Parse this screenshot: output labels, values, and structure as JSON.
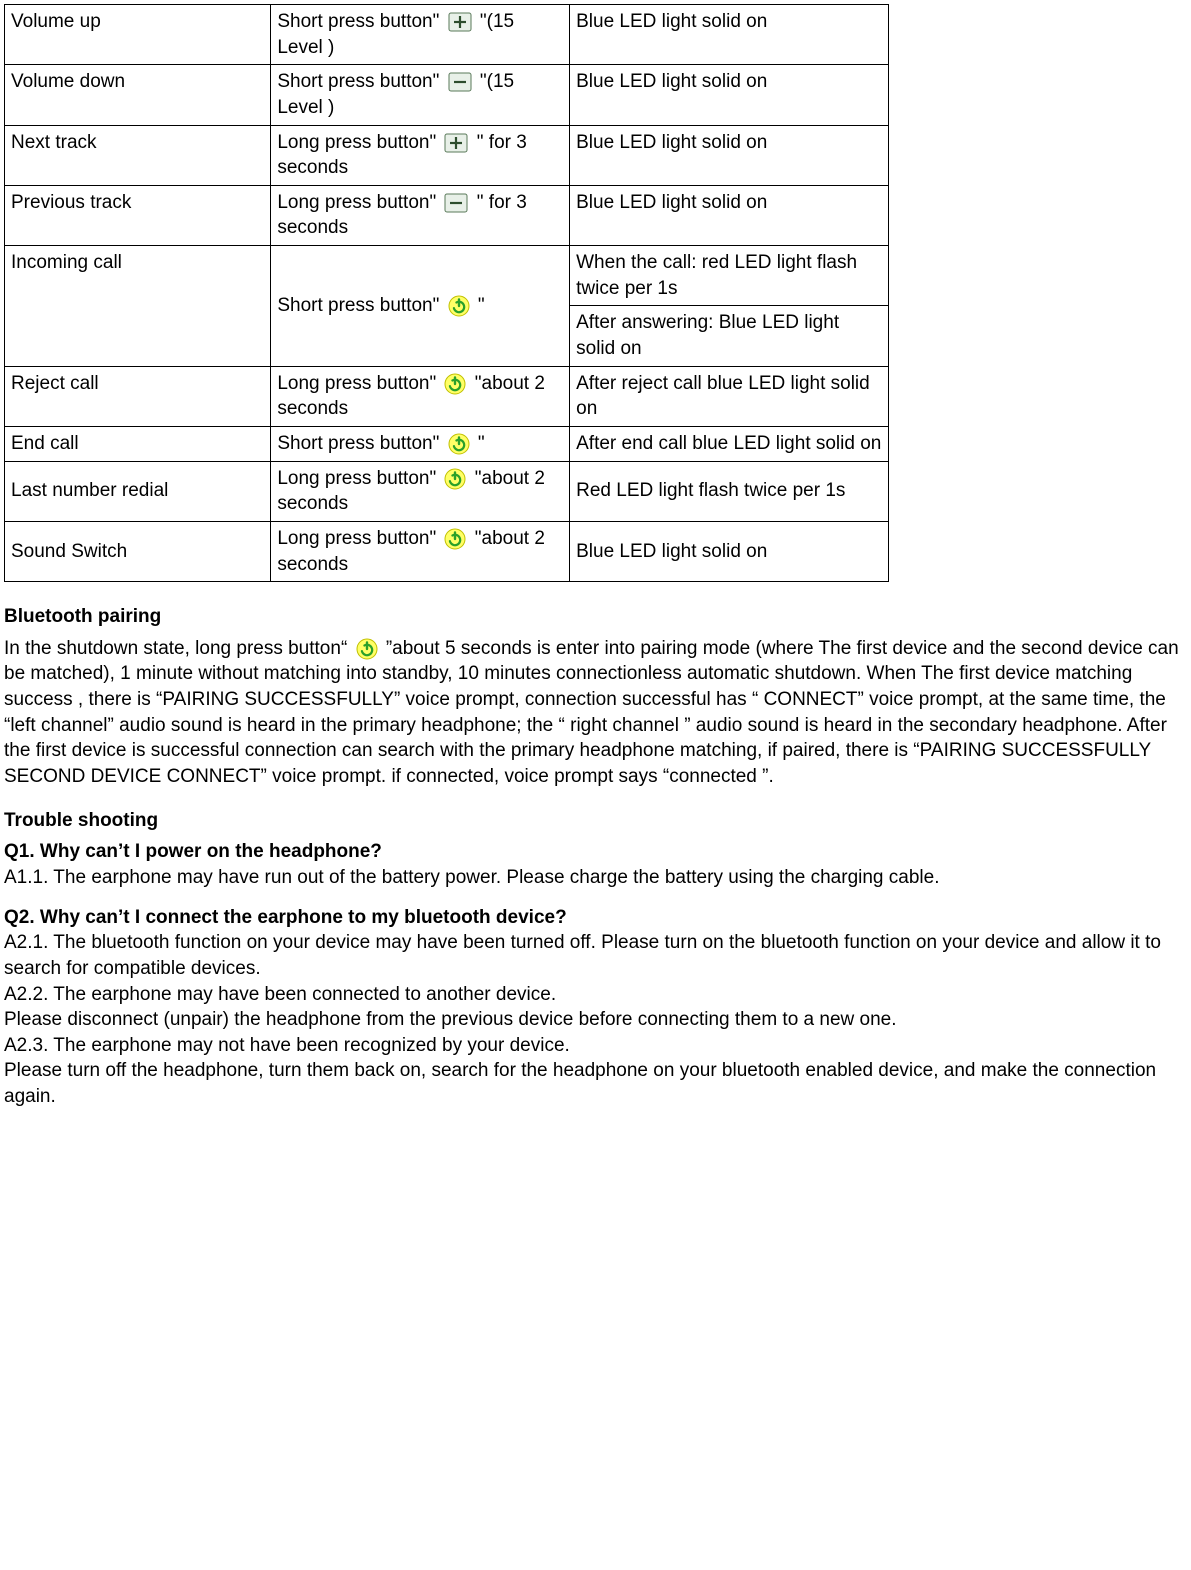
{
  "icons": {
    "plus": {
      "bg": "#e8f0e8",
      "border": "#5a7a5a",
      "glyph": "+",
      "glyph_color": "#2d4d2d"
    },
    "minus": {
      "bg": "#e8f0e8",
      "border": "#5a7a5a",
      "glyph": "−",
      "glyph_color": "#2d4d2d"
    },
    "power": {
      "bg": "#ffff66",
      "border": "#c0c000",
      "ring": "#2aa02a",
      "bar": "#2aa02a"
    }
  },
  "table": {
    "rows": [
      {
        "c1": "Volume up",
        "c2": {
          "pre": "Short press button\" ",
          "icon": "plus",
          "post": " \"(15 Level )"
        },
        "c3": "Blue LED light solid on"
      },
      {
        "c1": "Volume down",
        "c2": {
          "pre": "Short press button\" ",
          "icon": "minus",
          "post": " \"(15 Level )"
        },
        "c3": "Blue LED light solid on"
      },
      {
        "c1": "Next track",
        "c2": {
          "pre": "Long press button\" ",
          "icon": "plus",
          "post": " \" for 3 seconds"
        },
        "c3": "Blue LED light solid on"
      },
      {
        "c1": "Previous track",
        "c2": {
          "pre": "Long press button\" ",
          "icon": "minus",
          "post": " \" for 3 seconds"
        },
        "c3": "Blue LED light solid on"
      },
      {
        "c1": "Incoming call",
        "c1_rowspan": 2,
        "c2": {
          "pre": "Short press button\" ",
          "icon": "power",
          "post": " \""
        },
        "c2_rowspan": 2,
        "c2_valign": "mid",
        "c3": "When the call: red LED light flash twice per 1s"
      },
      {
        "c3": "After answering: Blue LED light solid on"
      },
      {
        "c1": "Reject call",
        "c2": {
          "pre": "Long press button\" ",
          "icon": "power",
          "post": " \"about 2 seconds"
        },
        "c2_valign": "mid",
        "c3": "After reject call blue LED light solid on",
        "c3_valign": "mid"
      },
      {
        "c1": "End call",
        "c2": {
          "pre": "Short press button\" ",
          "icon": "power",
          "post": " \""
        },
        "c2_valign": "mid",
        "c3": "After end call blue LED light solid on"
      },
      {
        "c1": "Last number redial",
        "c1_valign": "mid",
        "c2": {
          "pre": "Long press button\" ",
          "icon": "power",
          "post": " \"about 2 seconds"
        },
        "c2_valign": "mid",
        "c3": "Red LED light flash twice per 1s",
        "c3_valign": "mid"
      },
      {
        "c1": "Sound Switch",
        "c1_valign": "mid",
        "c2": {
          "pre": "Long press button\" ",
          "icon": "power",
          "post": " \"about 2 seconds"
        },
        "c2_valign": "mid",
        "c3": "Blue LED light solid on",
        "c3_valign": "mid"
      }
    ]
  },
  "sections": {
    "bluetooth": {
      "title": "Bluetooth pairing",
      "para_pre": "In the shutdown state, long press button“ ",
      "para_icon": "power",
      "para_post": " ”about 5 seconds is enter into pairing mode (where The first device and the second device can be matched), 1 minute without matching into standby, 10 minutes connectionless automatic shutdown. When The first device matching success , there is “PAIRING SUCCESSFULLY” voice prompt, connection successful has “ CONNECT” voice prompt, at the same time, the “left channel” audio sound is heard in the primary headphone; the “ right channel ” audio sound is heard in the secondary headphone. After the first device is successful connection can search with the primary headphone matching, if paired, there is “PAIRING SUCCESSFULLY SECOND DEVICE CONNECT” voice prompt. if connected, voice prompt says “connected ”."
    },
    "trouble": {
      "title": "Trouble shooting",
      "q1": {
        "q": "Q1. Why can’t I power on the headphone?",
        "a": "A1.1. The earphone may have run out of the battery power. Please charge the battery using the charging cable."
      },
      "q2": {
        "q": "Q2. Why can’t I connect the earphone to my bluetooth device?",
        "a1": "A2.1. The bluetooth function on your device may have been turned off. Please turn on the bluetooth function on your device and allow it to search for compatible devices.",
        "a2": "A2.2. The earphone may have been connected to another device.",
        "a2b": "Please disconnect (unpair) the headphone from the previous device before connecting them to a new one.",
        "a3": "A2.3. The earphone may not have been recognized by your device.",
        "a3b": "Please turn off the headphone, turn them back on, search for the headphone on your bluetooth enabled device, and make the connection again."
      }
    }
  }
}
